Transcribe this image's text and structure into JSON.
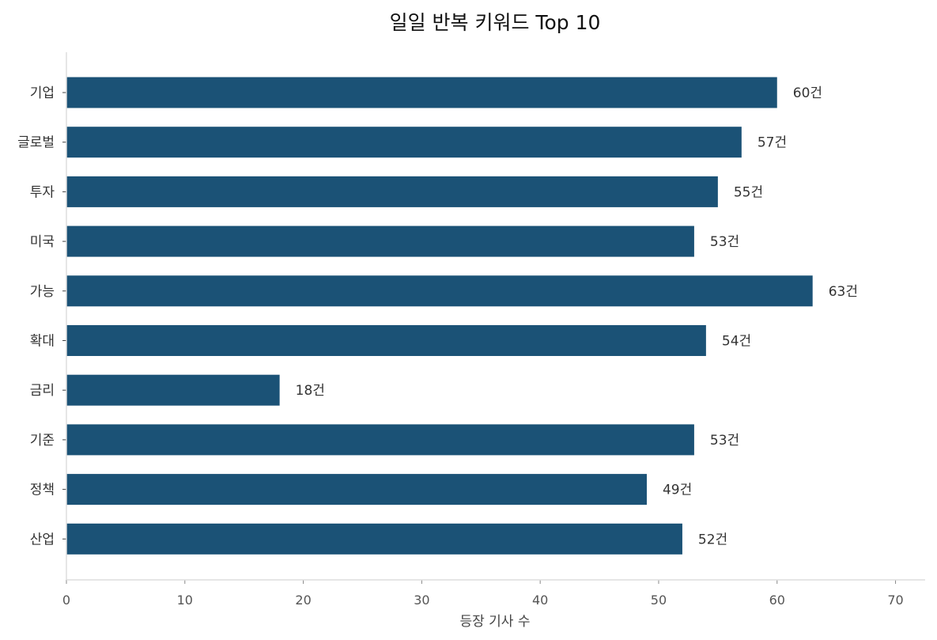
{
  "chart_data": {
    "type": "bar",
    "orientation": "horizontal",
    "title": "일일 반복 키워드 Top 10",
    "xlabel": "등장 기사 수",
    "ylabel": "",
    "categories": [
      "기업",
      "글로벌",
      "투자",
      "미국",
      "가능",
      "확대",
      "금리",
      "기준",
      "정책",
      "산업"
    ],
    "values": [
      60,
      57,
      55,
      53,
      63,
      54,
      18,
      53,
      49,
      52
    ],
    "value_labels": [
      "60건",
      "57건",
      "55건",
      "53건",
      "63건",
      "54건",
      "18건",
      "53건",
      "49건",
      "52건"
    ],
    "xlim": [
      0,
      72.5
    ],
    "xticks": [
      0,
      10,
      20,
      30,
      40,
      50,
      60,
      70
    ],
    "xtick_labels": [
      "0",
      "10",
      "20",
      "30",
      "40",
      "50",
      "60",
      "70"
    ],
    "grid": false,
    "bar_color": "#1b5276"
  }
}
